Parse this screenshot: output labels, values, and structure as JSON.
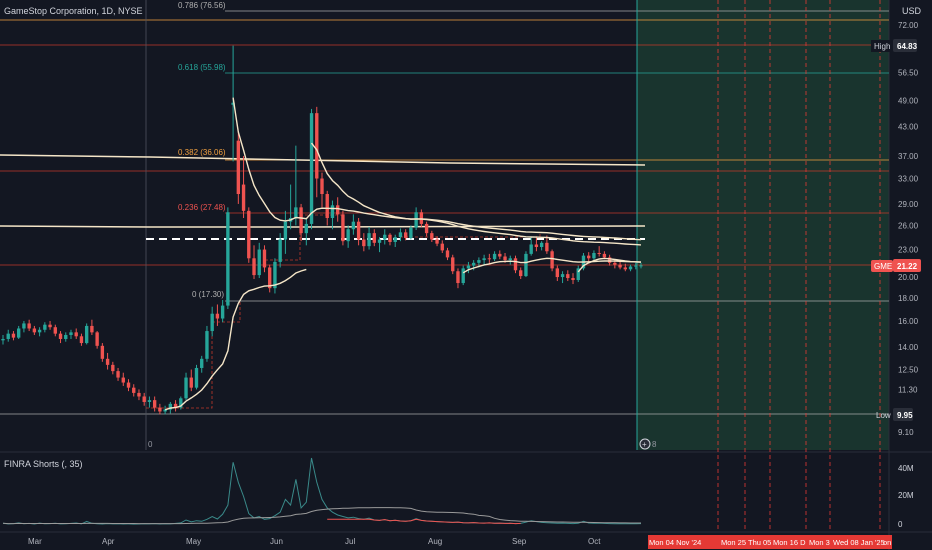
{
  "header": {
    "symbol_title": "GameStop Corporation, 1D, NYSE",
    "currency": "USD"
  },
  "indicator": {
    "title": "FINRA Shorts (, 35)",
    "y_ticks": [
      "40M",
      "20M",
      "0"
    ]
  },
  "colors": {
    "background": "#131722",
    "up": "#26a69a",
    "down": "#ef5350",
    "fib_line": "#a8a8a8",
    "future_zone": "#1b3a30",
    "vwap": "#f5e6c8",
    "orange": "#f0a040",
    "red_line": "#c0392b",
    "short_teal": "#3a8a8a",
    "short_grey": "#9a9a9a"
  },
  "fib_levels": [
    {
      "text": "0.786 (76.56)",
      "color": "#b0b0b0"
    },
    {
      "text": "0.618 (55.98)",
      "color": "#26a69a"
    },
    {
      "text": "0.382 (36.06)",
      "color": "#f0a040"
    },
    {
      "text": "0.236 (27.48)",
      "color": "#ef5350"
    },
    {
      "text": "0 (17.30)",
      "color": "#b0b0b0"
    }
  ],
  "markers": {
    "high_label": "High",
    "high_value": "64.83",
    "low_label": "Low",
    "low_value": "9.95",
    "last_ticker": "GME",
    "last_value": "21.22",
    "zero_marker": "0",
    "eight_marker": "8"
  },
  "chart_data": {
    "type": "candlestick",
    "symbol": "GME",
    "y_scale": "log",
    "y_ticks": [
      72.0,
      64.83,
      56.5,
      49.0,
      43.0,
      37.0,
      33.0,
      29.0,
      26.0,
      23.0,
      21.22,
      20.0,
      18.0,
      16.0,
      14.0,
      12.5,
      11.3,
      9.95,
      9.1
    ],
    "y_tick_labels": [
      "72.00",
      "64.83",
      "56.50",
      "49.00",
      "43.00",
      "37.00",
      "33.00",
      "29.00",
      "26.00",
      "23.00",
      "21.22",
      "20.00",
      "18.00",
      "16.00",
      "14.00",
      "12.50",
      "11.30",
      "9.95",
      "9.10"
    ],
    "x_ticks": [
      "Mar",
      "Apr",
      "May",
      "Jun",
      "Jul",
      "Aug",
      "Sep",
      "Oct"
    ],
    "future_labels": [
      "Mon 04 Nov '24",
      "Mon 25",
      "Thu 05",
      "Mon 16 D",
      "Mon 3",
      "Wed 08 Jan '25",
      "on"
    ],
    "ohlc": [
      [
        14.5,
        14.9,
        14.2,
        14.6
      ],
      [
        14.6,
        15.3,
        14.4,
        15.0
      ],
      [
        15.0,
        15.2,
        14.5,
        14.7
      ],
      [
        14.7,
        15.6,
        14.6,
        15.4
      ],
      [
        15.4,
        16.0,
        15.1,
        15.8
      ],
      [
        15.8,
        16.1,
        15.2,
        15.4
      ],
      [
        15.4,
        15.6,
        14.9,
        15.1
      ],
      [
        15.1,
        15.5,
        14.8,
        15.3
      ],
      [
        15.3,
        15.9,
        15.1,
        15.7
      ],
      [
        15.7,
        16.0,
        15.3,
        15.5
      ],
      [
        15.5,
        15.7,
        14.8,
        15.0
      ],
      [
        15.0,
        15.2,
        14.3,
        14.6
      ],
      [
        14.6,
        15.1,
        14.4,
        14.9
      ],
      [
        14.9,
        15.3,
        14.6,
        15.1
      ],
      [
        15.1,
        15.4,
        14.6,
        14.8
      ],
      [
        14.8,
        15.0,
        14.1,
        14.3
      ],
      [
        14.3,
        15.8,
        14.2,
        15.6
      ],
      [
        15.6,
        16.1,
        14.9,
        15.1
      ],
      [
        15.1,
        15.2,
        13.9,
        14.1
      ],
      [
        14.1,
        14.3,
        13.0,
        13.2
      ],
      [
        13.2,
        13.6,
        12.5,
        12.8
      ],
      [
        12.8,
        13.0,
        12.2,
        12.4
      ],
      [
        12.4,
        12.6,
        11.8,
        12.0
      ],
      [
        12.0,
        12.3,
        11.5,
        11.7
      ],
      [
        11.7,
        11.9,
        11.2,
        11.4
      ],
      [
        11.4,
        11.6,
        10.9,
        11.1
      ],
      [
        11.1,
        11.3,
        10.7,
        10.9
      ],
      [
        10.9,
        11.1,
        10.4,
        10.6
      ],
      [
        10.6,
        10.9,
        10.3,
        10.7
      ],
      [
        10.7,
        10.9,
        10.1,
        10.3
      ],
      [
        10.3,
        10.5,
        9.95,
        10.1
      ],
      [
        10.1,
        10.4,
        9.95,
        10.2
      ],
      [
        10.2,
        10.6,
        10.0,
        10.5
      ],
      [
        10.5,
        10.7,
        10.1,
        10.3
      ],
      [
        10.3,
        10.9,
        10.2,
        10.8
      ],
      [
        10.8,
        12.3,
        10.7,
        12.0
      ],
      [
        12.0,
        12.5,
        11.2,
        11.4
      ],
      [
        11.4,
        12.8,
        11.3,
        12.6
      ],
      [
        12.6,
        13.4,
        12.3,
        13.2
      ],
      [
        13.2,
        15.6,
        13.0,
        15.2
      ],
      [
        15.2,
        17.2,
        14.8,
        16.6
      ],
      [
        16.6,
        17.4,
        15.6,
        16.2
      ],
      [
        16.2,
        17.8,
        15.9,
        17.3
      ],
      [
        17.3,
        28.5,
        17.0,
        27.8
      ],
      [
        48.0,
        64.83,
        36.0,
        48.5
      ],
      [
        40.0,
        42.0,
        29.0,
        30.5
      ],
      [
        32.0,
        37.0,
        27.0,
        28.0
      ],
      [
        28.0,
        28.5,
        21.5,
        22.0
      ],
      [
        22.0,
        23.5,
        19.8,
        20.2
      ],
      [
        20.2,
        23.8,
        19.9,
        23.0
      ],
      [
        23.0,
        23.5,
        20.5,
        21.0
      ],
      [
        21.0,
        21.3,
        18.5,
        18.9
      ],
      [
        18.9,
        22.0,
        18.4,
        21.6
      ],
      [
        21.6,
        25.0,
        21.0,
        24.2
      ],
      [
        24.2,
        28.0,
        22.5,
        26.5
      ],
      [
        26.5,
        32.0,
        25.5,
        27.0
      ],
      [
        27.0,
        39.0,
        26.0,
        28.5
      ],
      [
        28.5,
        29.0,
        24.0,
        25.0
      ],
      [
        25.0,
        27.0,
        23.5,
        26.2
      ],
      [
        26.2,
        47.0,
        25.5,
        46.0
      ],
      [
        46.0,
        47.5,
        30.0,
        33.0
      ],
      [
        33.0,
        34.0,
        28.5,
        30.5
      ],
      [
        30.5,
        31.0,
        26.0,
        27.0
      ],
      [
        27.0,
        29.5,
        25.5,
        28.8
      ],
      [
        28.8,
        30.0,
        26.5,
        27.5
      ],
      [
        27.5,
        28.0,
        23.5,
        24.0
      ],
      [
        24.0,
        26.0,
        23.2,
        25.5
      ],
      [
        25.5,
        27.5,
        24.8,
        26.5
      ],
      [
        26.5,
        27.0,
        23.5,
        24.2
      ],
      [
        24.2,
        25.0,
        22.8,
        23.4
      ],
      [
        23.4,
        25.8,
        23.0,
        25.0
      ],
      [
        25.0,
        25.5,
        23.4,
        23.8
      ],
      [
        23.8,
        24.5,
        22.7,
        24.2
      ],
      [
        24.2,
        25.5,
        23.6,
        24.8
      ],
      [
        24.8,
        25.0,
        23.5,
        23.9
      ],
      [
        23.9,
        24.8,
        23.3,
        24.5
      ],
      [
        24.5,
        25.6,
        24.0,
        25.1
      ],
      [
        25.1,
        25.5,
        24.1,
        24.4
      ],
      [
        24.4,
        26.0,
        24.2,
        25.7
      ],
      [
        25.7,
        28.5,
        25.4,
        27.8
      ],
      [
        27.8,
        28.2,
        25.8,
        26.2
      ],
      [
        26.2,
        26.5,
        24.6,
        25.0
      ],
      [
        25.0,
        25.3,
        23.9,
        24.2
      ],
      [
        24.2,
        24.6,
        23.4,
        23.7
      ],
      [
        23.7,
        24.1,
        22.6,
        22.9
      ],
      [
        22.9,
        23.2,
        21.8,
        22.1
      ],
      [
        22.1,
        22.4,
        20.3,
        20.6
      ],
      [
        20.6,
        20.9,
        18.9,
        19.4
      ],
      [
        19.4,
        21.2,
        19.2,
        20.9
      ],
      [
        20.9,
        21.6,
        20.4,
        21.2
      ],
      [
        21.2,
        21.8,
        20.7,
        21.5
      ],
      [
        21.5,
        22.1,
        21.0,
        21.8
      ],
      [
        21.8,
        22.4,
        21.3,
        22.0
      ],
      [
        22.0,
        22.5,
        21.4,
        21.9
      ],
      [
        21.9,
        22.8,
        21.7,
        22.5
      ],
      [
        22.5,
        22.9,
        21.9,
        22.2
      ],
      [
        22.2,
        22.6,
        21.5,
        21.8
      ],
      [
        21.8,
        22.3,
        21.3,
        22.0
      ],
      [
        22.0,
        22.3,
        20.4,
        20.7
      ],
      [
        20.7,
        21.0,
        19.8,
        20.1
      ],
      [
        20.1,
        22.8,
        20.0,
        22.5
      ],
      [
        22.5,
        24.5,
        22.3,
        23.6
      ],
      [
        23.6,
        24.6,
        22.8,
        23.3
      ],
      [
        23.3,
        24.0,
        22.9,
        23.8
      ],
      [
        23.8,
        24.7,
        22.5,
        22.8
      ],
      [
        22.8,
        23.0,
        20.6,
        20.9
      ],
      [
        20.9,
        21.2,
        19.6,
        20.0
      ],
      [
        20.0,
        20.6,
        19.4,
        20.3
      ],
      [
        20.3,
        20.7,
        19.6,
        19.9
      ],
      [
        19.9,
        20.4,
        19.3,
        19.7
      ],
      [
        19.7,
        21.2,
        19.5,
        20.9
      ],
      [
        20.9,
        22.6,
        20.7,
        22.3
      ],
      [
        22.3,
        22.7,
        21.6,
        22.0
      ],
      [
        22.0,
        22.9,
        21.8,
        22.6
      ],
      [
        22.6,
        23.4,
        22.2,
        22.5
      ],
      [
        22.5,
        22.8,
        21.9,
        22.1
      ],
      [
        22.1,
        22.4,
        21.2,
        21.5
      ],
      [
        21.5,
        21.8,
        20.9,
        21.3
      ],
      [
        21.3,
        21.6,
        20.8,
        21.0
      ],
      [
        21.0,
        21.4,
        20.6,
        20.8
      ],
      [
        20.8,
        21.3,
        20.6,
        21.1
      ],
      [
        21.1,
        21.5,
        20.8,
        21.2
      ],
      [
        21.2,
        21.5,
        20.9,
        21.22
      ]
    ],
    "short_volume_m": [
      1.2,
      0.8,
      1.0,
      1.5,
      0.9,
      1.1,
      0.7,
      1.3,
      0.9,
      1.0,
      1.2,
      0.8,
      0.9,
      1.1,
      1.4,
      0.8,
      2.5,
      1.2,
      0.9,
      0.7,
      1.0,
      0.8,
      0.9,
      0.7,
      0.8,
      0.6,
      0.7,
      0.9,
      0.8,
      1.0,
      0.7,
      0.9,
      0.8,
      1.1,
      1.5,
      3.5,
      2.2,
      3.0,
      2.6,
      4.0,
      6.0,
      4.2,
      7.5,
      14.0,
      44.0,
      30.0,
      20.0,
      8.0,
      5.0,
      6.0,
      4.0,
      4.5,
      6.5,
      9.0,
      18.0,
      14.0,
      32.0,
      12.0,
      16.0,
      47.0,
      30.0,
      18.0,
      12.0,
      9.0,
      7.0,
      6.0,
      5.0,
      5.5,
      4.5,
      4.0,
      4.8,
      3.5,
      3.2,
      3.8,
      3.0,
      3.4,
      2.8,
      2.6,
      3.0,
      4.5,
      3.2,
      2.8,
      2.6,
      2.4,
      2.2,
      2.0,
      1.8,
      2.0,
      1.6,
      1.5,
      1.7,
      1.4,
      1.3,
      1.5,
      1.2,
      1.3,
      1.1,
      1.2,
      1.0,
      1.1,
      2.0,
      3.0,
      2.4,
      1.8,
      1.6,
      1.4,
      1.2,
      1.3,
      1.1,
      1.0,
      1.2,
      2.6,
      1.4,
      1.2,
      1.3,
      1.1,
      1.0,
      0.9,
      1.0,
      0.9,
      1.0,
      0.9,
      1.0
    ]
  }
}
